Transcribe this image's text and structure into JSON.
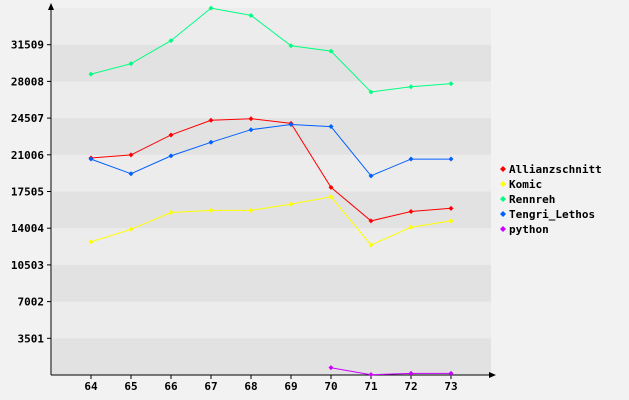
{
  "chart_data": {
    "type": "line",
    "title": "",
    "xlabel": "",
    "ylabel": "",
    "x": [
      64,
      65,
      66,
      67,
      68,
      69,
      70,
      71,
      72,
      73
    ],
    "x_tick_labels": [
      "64",
      "65",
      "66",
      "67",
      "68",
      "69",
      "70",
      "71",
      "72",
      "73"
    ],
    "y_ticks": [
      3501,
      7002,
      10503,
      14004,
      17505,
      21006,
      24507,
      28008,
      31509
    ],
    "y_tick_labels": [
      "3501",
      "7002",
      "10503",
      "14004",
      "17505",
      "21006",
      "24507",
      "28008",
      "31509"
    ],
    "ylim": [
      0,
      35010
    ],
    "grid": "horizontal alternating bands",
    "legend_position": "right",
    "series": [
      {
        "name": "Allianzschnitt",
        "color": "#ff0000",
        "values": [
          20700,
          21000,
          22900,
          24300,
          24450,
          24000,
          17900,
          14700,
          15600,
          15900
        ]
      },
      {
        "name": "Komic",
        "color": "#ffff00",
        "values": [
          12700,
          13900,
          15500,
          15700,
          15700,
          16300,
          17000,
          12400,
          14100,
          14700
        ]
      },
      {
        "name": "Rennreh",
        "color": "#00ff80",
        "values": [
          28700,
          29700,
          31900,
          35000,
          34300,
          31400,
          30900,
          27000,
          27500,
          27800
        ]
      },
      {
        "name": "Tengri_Lethos",
        "color": "#0060ff",
        "values": [
          20600,
          19200,
          20900,
          22200,
          23400,
          23900,
          23700,
          19000,
          20600,
          20600
        ]
      },
      {
        "name": "python",
        "color": "#cc00ff",
        "values": [
          null,
          null,
          null,
          null,
          null,
          null,
          700,
          30,
          150,
          150
        ]
      }
    ]
  }
}
